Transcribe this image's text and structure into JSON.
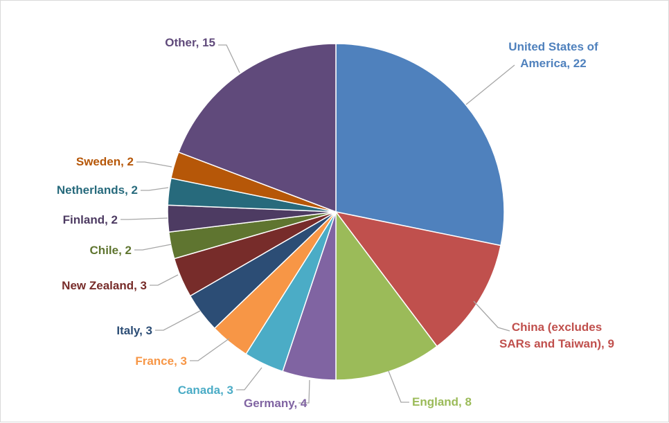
{
  "chart_data": {
    "type": "pie",
    "title": "",
    "legend": "none",
    "slices": [
      {
        "label_lines": [
          "United States of",
          "America, 22"
        ],
        "value": 22,
        "color": "#4f81bd"
      },
      {
        "label_lines": [
          "China (excludes",
          "SARs and Taiwan), 9"
        ],
        "value": 9,
        "color": "#c0504d"
      },
      {
        "label_lines": [
          "England, 8"
        ],
        "value": 8,
        "color": "#9bbb59"
      },
      {
        "label_lines": [
          "Germany, 4"
        ],
        "value": 4,
        "color": "#8064a2"
      },
      {
        "label_lines": [
          "Canada, 3"
        ],
        "value": 3,
        "color": "#4bacc6"
      },
      {
        "label_lines": [
          "France, 3"
        ],
        "value": 3,
        "color": "#f79646"
      },
      {
        "label_lines": [
          "Italy, 3"
        ],
        "value": 3,
        "color": "#2c4d75"
      },
      {
        "label_lines": [
          "New Zealand, 3"
        ],
        "value": 3,
        "color": "#772c2a"
      },
      {
        "label_lines": [
          "Chile, 2"
        ],
        "value": 2,
        "color": "#5f7530"
      },
      {
        "label_lines": [
          "Finland, 2"
        ],
        "value": 2,
        "color": "#4d3b62"
      },
      {
        "label_lines": [
          "Netherlands, 2"
        ],
        "value": 2,
        "color": "#276a7c"
      },
      {
        "label_lines": [
          "Sweden, 2"
        ],
        "value": 2,
        "color": "#b65708"
      },
      {
        "label_lines": [
          "Other, 15"
        ],
        "value": 15,
        "color": "#604a7b"
      }
    ]
  }
}
